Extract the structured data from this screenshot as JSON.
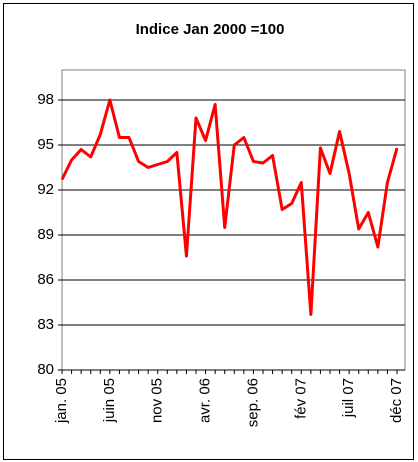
{
  "chart_data": {
    "type": "line",
    "title": "Indice Jan 2000 =100",
    "categories": [
      "jan. 05",
      null,
      null,
      null,
      null,
      "juin 05",
      null,
      null,
      null,
      null,
      "nov 05",
      null,
      null,
      null,
      null,
      "avr. 06",
      null,
      null,
      null,
      null,
      "sep. 06",
      null,
      null,
      null,
      null,
      "fév 07",
      null,
      null,
      null,
      null,
      "juil 07",
      null,
      null,
      null,
      null,
      "déc 07"
    ],
    "series": [
      {
        "name": "Indice",
        "color": "#ff0000",
        "values": [
          92.7,
          94.0,
          94.7,
          94.2,
          95.7,
          98.0,
          95.5,
          95.5,
          93.9,
          93.5,
          93.7,
          93.9,
          94.5,
          87.6,
          96.8,
          95.3,
          97.7,
          89.5,
          95.0,
          95.5,
          93.9,
          93.8,
          94.3,
          90.7,
          91.1,
          92.5,
          83.7,
          94.8,
          93.1,
          95.9,
          93.1,
          89.4,
          90.5,
          88.2,
          92.5,
          94.8
        ]
      }
    ],
    "ylim": [
      80,
      100
    ],
    "yticks": [
      80,
      83,
      86,
      89,
      92,
      95,
      98
    ],
    "grid": true
  }
}
